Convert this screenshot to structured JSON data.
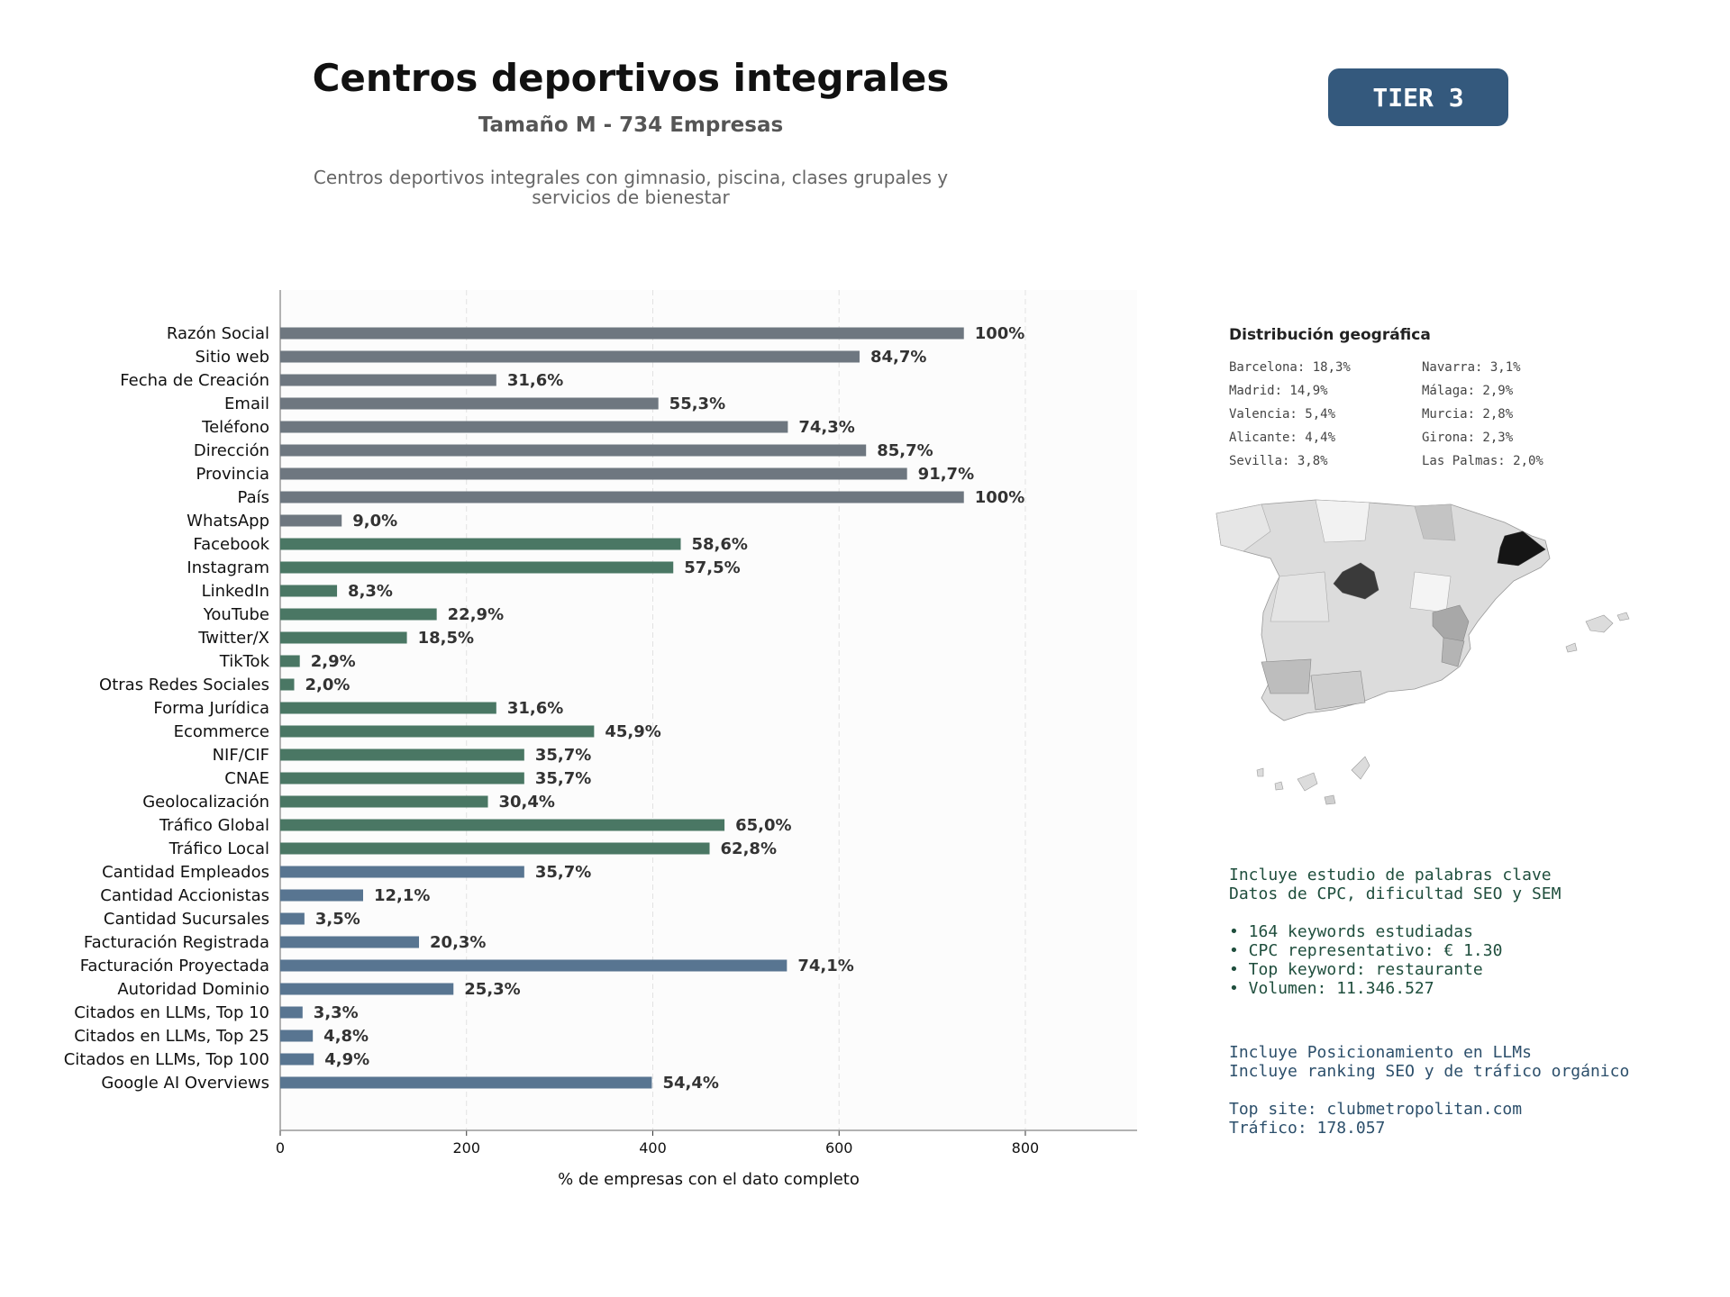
{
  "header": {
    "title": "Centros deportivos integrales",
    "subtitle": "Tamaño M - 734 Empresas",
    "description": "Centros deportivos integrales con gimnasio, piscina, clases grupales y servicios de bienestar",
    "tier": "TIER 3"
  },
  "colors": {
    "basic": "#6e7780",
    "digital": "#4a7764",
    "business": "#587591",
    "tier_bg": "#34597d"
  },
  "chart_data": {
    "type": "bar",
    "orientation": "horizontal",
    "xlabel": "% de empresas con el dato completo",
    "xlim": [
      0,
      920
    ],
    "xticks": [
      0,
      200,
      400,
      600,
      800
    ],
    "grid": true,
    "categories": [
      "Razón Social",
      "Sitio web",
      "Fecha de Creación",
      "Email",
      "Teléfono",
      "Dirección",
      "Provincia",
      "País",
      "WhatsApp",
      "Facebook",
      "Instagram",
      "LinkedIn",
      "YouTube",
      "Twitter/X",
      "TikTok",
      "Otras Redes Sociales",
      "Forma Jurídica",
      "Ecommerce",
      "NIF/CIF",
      "CNAE",
      "Geolocalización",
      "Tráfico Global",
      "Tráfico Local",
      "Cantidad Empleados",
      "Cantidad Accionistas",
      "Cantidad Sucursales",
      "Facturación Registrada",
      "Facturación Proyectada",
      "Autoridad Dominio",
      "Citados en LLMs, Top 10",
      "Citados en LLMs, Top 25",
      "Citados en LLMs, Top 100",
      "Google AI Overviews"
    ],
    "values": [
      734,
      622,
      232,
      406,
      545,
      629,
      673,
      734,
      66,
      430,
      422,
      61,
      168,
      136,
      21,
      15,
      232,
      337,
      262,
      262,
      223,
      477,
      461,
      262,
      89,
      26,
      149,
      544,
      186,
      24,
      35,
      36,
      399
    ],
    "labels": [
      "100%",
      "84,7%",
      "31,6%",
      "55,3%",
      "74,3%",
      "85,7%",
      "91,7%",
      "100%",
      "9,0%",
      "58,6%",
      "57,5%",
      "8,3%",
      "22,9%",
      "18,5%",
      "2,9%",
      "2,0%",
      "31,6%",
      "45,9%",
      "35,7%",
      "35,7%",
      "30,4%",
      "65,0%",
      "62,8%",
      "35,7%",
      "12,1%",
      "3,5%",
      "20,3%",
      "74,1%",
      "25,3%",
      "3,3%",
      "4,8%",
      "4,9%",
      "54,4%"
    ],
    "groups": [
      "basic",
      "basic",
      "basic",
      "basic",
      "basic",
      "basic",
      "basic",
      "basic",
      "basic",
      "digital",
      "digital",
      "digital",
      "digital",
      "digital",
      "digital",
      "digital",
      "digital",
      "digital",
      "digital",
      "digital",
      "digital",
      "digital",
      "digital",
      "business",
      "business",
      "business",
      "business",
      "business",
      "business",
      "business",
      "business",
      "business",
      "business"
    ]
  },
  "geo": {
    "title": "Distribución geográfica",
    "items": [
      "Barcelona: 18,3%",
      "Navarra: 3,1%",
      "Madrid: 14,9%",
      "Málaga: 2,9%",
      "Valencia: 5,4%",
      "Murcia: 2,8%",
      "Alicante: 4,4%",
      "Girona: 2,3%",
      "Sevilla: 3,8%",
      "Las Palmas: 2,0%"
    ]
  },
  "keywords": {
    "line1": "Incluye estudio de palabras clave",
    "line2": "Datos de CPC, dificultad SEO y SEM",
    "b1": "• 164 keywords estudiadas",
    "b2": "• CPC representativo: € 1.30",
    "b3": "• Top keyword: restaurante",
    "b4": "• Volumen: 11.346.527"
  },
  "llm": {
    "line1": "Incluye Posicionamiento en LLMs",
    "line2": "Incluye ranking SEO y de tráfico orgánico",
    "site": "Top site: clubmetropolitan.com",
    "traffic": "Tráfico: 178.057"
  }
}
